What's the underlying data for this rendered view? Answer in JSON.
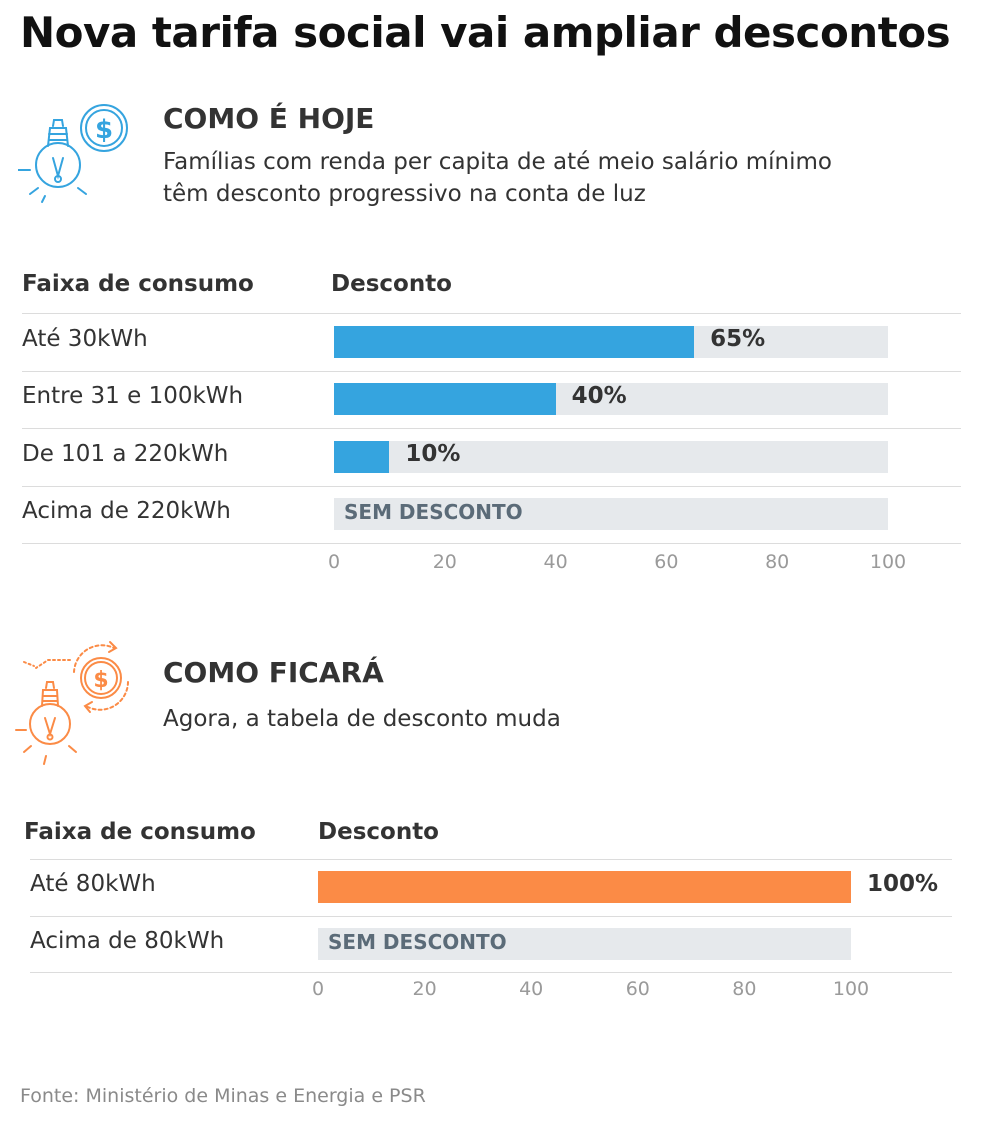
{
  "title": "Nova tarifa social vai ampliar descontos",
  "colors": {
    "today_accent": "#35a4df",
    "future_accent": "#fb8b46",
    "track": "#e6e9ec"
  },
  "icons": {
    "today": "bulb-dollar-icon",
    "future": "bulb-cycle-dollar-icon"
  },
  "source": "Fonte: Ministério de Minas e Energia e PSR",
  "chart_data": [
    {
      "type": "bar",
      "orientation": "horizontal",
      "section_title": "COMO É HOJE",
      "description": [
        "Famílias com renda per capita de até meio salário mínimo",
        "têm desconto progressivo na conta de luz"
      ],
      "header_category": "Faixa de consumo",
      "header_value": "Desconto",
      "categories": [
        "Até 30kWh",
        "Entre 31 e 100kWh",
        "De 101 a 220kWh",
        "Acima de 220kWh"
      ],
      "values": [
        65,
        40,
        10,
        0
      ],
      "value_labels": [
        "65%",
        "40%",
        "10%",
        "SEM DESCONTO"
      ],
      "xlim": [
        0,
        100
      ],
      "ticks": [
        "0",
        "20",
        "40",
        "60",
        "80",
        "100"
      ],
      "color": "#35a4df"
    },
    {
      "type": "bar",
      "orientation": "horizontal",
      "section_title": "COMO FICARÁ",
      "description": [
        "Agora, a tabela de desconto muda"
      ],
      "header_category": "Faixa de consumo",
      "header_value": "Desconto",
      "categories": [
        "Até 80kWh",
        "Acima de 80kWh"
      ],
      "values": [
        100,
        0
      ],
      "value_labels": [
        "100%",
        "SEM DESCONTO"
      ],
      "xlim": [
        0,
        100
      ],
      "ticks": [
        "0",
        "20",
        "40",
        "60",
        "80",
        "100"
      ],
      "color": "#fb8b46"
    }
  ]
}
